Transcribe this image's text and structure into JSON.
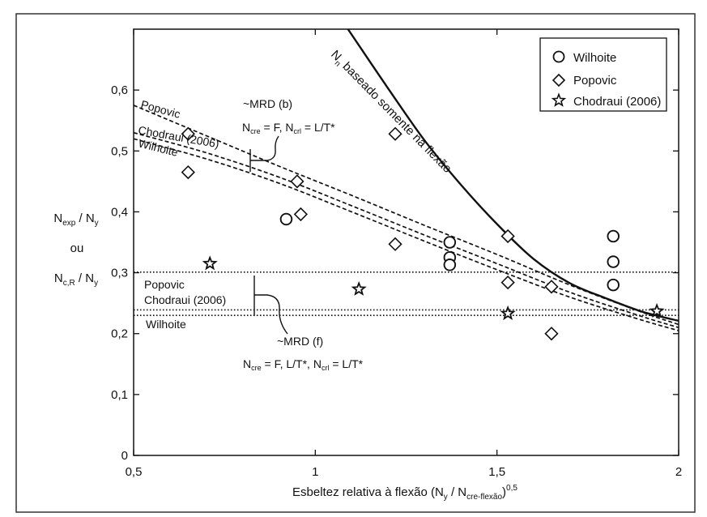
{
  "chart_data": {
    "type": "scatter",
    "xlim": [
      0.5,
      2.0
    ],
    "ylim": [
      0,
      0.7
    ],
    "x_ticks": [
      {
        "v": 0.5,
        "label": "0,5"
      },
      {
        "v": 1.0,
        "label": "1"
      },
      {
        "v": 1.5,
        "label": "1,5"
      },
      {
        "v": 2.0,
        "label": "2"
      }
    ],
    "y_ticks": [
      {
        "v": 0,
        "label": "0"
      },
      {
        "v": 0.1,
        "label": "0,1"
      },
      {
        "v": 0.2,
        "label": "0,2"
      },
      {
        "v": 0.3,
        "label": "0,3"
      },
      {
        "v": 0.4,
        "label": "0,4"
      },
      {
        "v": 0.5,
        "label": "0,5"
      },
      {
        "v": 0.6,
        "label": "0,6"
      }
    ],
    "xlabel": {
      "main": "Esbeltez relativa à flexão (N",
      "sub1": "y",
      "mid": " / N",
      "sub2": "cre-flexão",
      "end": ")",
      "sup": "0,5"
    },
    "ylabel": {
      "line1_a": "N",
      "line1_sub_a": "exp",
      "line1_b": " / N",
      "line1_sub_b": "y",
      "line2": "ou",
      "line3_a": "N",
      "line3_sub_a": "c,R",
      "line3_b": " / N",
      "line3_sub_b": "y"
    },
    "legend": {
      "position": "top-right",
      "entries": [
        {
          "marker": "circle",
          "name": "Wilhoite"
        },
        {
          "marker": "diamond",
          "name": "Popovic"
        },
        {
          "marker": "star",
          "name": "Chodraui (2006)"
        }
      ]
    },
    "series": [
      {
        "name": "Wilhoite",
        "marker": "circle",
        "points": [
          [
            0.92,
            0.388
          ],
          [
            1.37,
            0.35
          ],
          [
            1.37,
            0.325
          ],
          [
            1.37,
            0.313
          ],
          [
            1.82,
            0.36
          ],
          [
            1.82,
            0.318
          ],
          [
            1.82,
            0.28
          ]
        ]
      },
      {
        "name": "Popovic",
        "marker": "diamond",
        "points": [
          [
            0.65,
            0.528
          ],
          [
            0.65,
            0.465
          ],
          [
            0.95,
            0.45
          ],
          [
            0.96,
            0.396
          ],
          [
            1.22,
            0.528
          ],
          [
            1.22,
            0.347
          ],
          [
            1.53,
            0.36
          ],
          [
            1.53,
            0.284
          ],
          [
            1.65,
            0.277
          ],
          [
            1.65,
            0.2
          ]
        ]
      },
      {
        "name": "Chodraui (2006)",
        "marker": "star",
        "points": [
          [
            0.71,
            0.315
          ],
          [
            1.12,
            0.273
          ],
          [
            1.53,
            0.233
          ],
          [
            1.94,
            0.237
          ]
        ]
      }
    ],
    "curves": [
      {
        "name": "flexure",
        "style": "solid",
        "points": [
          [
            1.09,
            0.7
          ],
          [
            1.2,
            0.603
          ],
          [
            1.3,
            0.518
          ],
          [
            1.4,
            0.445
          ],
          [
            1.5,
            0.38
          ],
          [
            1.6,
            0.323
          ],
          [
            1.7,
            0.283
          ],
          [
            1.8,
            0.258
          ],
          [
            1.9,
            0.236
          ],
          [
            2.0,
            0.221
          ]
        ]
      },
      {
        "name": "mrd-b-popovic",
        "style": "dashed",
        "points": [
          [
            0.5,
            0.575
          ],
          [
            0.7,
            0.525
          ],
          [
            0.9,
            0.475
          ],
          [
            1.1,
            0.427
          ],
          [
            1.3,
            0.378
          ],
          [
            1.5,
            0.33
          ],
          [
            1.7,
            0.28
          ],
          [
            1.9,
            0.235
          ],
          [
            2.0,
            0.215
          ]
        ]
      },
      {
        "name": "mrd-b-chodraui",
        "style": "dashed",
        "points": [
          [
            0.5,
            0.53
          ],
          [
            0.7,
            0.497
          ],
          [
            0.9,
            0.457
          ],
          [
            1.1,
            0.41
          ],
          [
            1.3,
            0.362
          ],
          [
            1.5,
            0.315
          ],
          [
            1.7,
            0.268
          ],
          [
            1.9,
            0.228
          ],
          [
            2.0,
            0.21
          ]
        ]
      },
      {
        "name": "mrd-b-wilhoite",
        "style": "dashed",
        "points": [
          [
            0.5,
            0.52
          ],
          [
            0.7,
            0.487
          ],
          [
            0.9,
            0.447
          ],
          [
            1.1,
            0.4
          ],
          [
            1.3,
            0.352
          ],
          [
            1.5,
            0.305
          ],
          [
            1.7,
            0.26
          ],
          [
            1.9,
            0.222
          ],
          [
            2.0,
            0.205
          ]
        ]
      },
      {
        "name": "mrd-f-popovic",
        "style": "dotted",
        "points": [
          [
            0.5,
            0.301
          ],
          [
            2.0,
            0.301
          ]
        ]
      },
      {
        "name": "mrd-f-chodraui",
        "style": "dotted",
        "points": [
          [
            0.5,
            0.239
          ],
          [
            2.0,
            0.239
          ]
        ]
      },
      {
        "name": "mrd-f-wilhoite",
        "style": "dotted",
        "points": [
          [
            0.5,
            0.23
          ],
          [
            2.0,
            0.23
          ]
        ]
      }
    ],
    "annotations": {
      "flexure_curve_label_a": "N",
      "flexure_curve_label_sub": "n",
      "flexure_curve_label_b": " baseado somente na flexão",
      "popovic_b": "Popovic",
      "chodraui_b": "Chodraui (2006)",
      "wilhoite_b": "Wilhoite",
      "popovic_f": "Popovic",
      "chodraui_f": "Chodraui (2006)",
      "wilhoite_f": "Wilhoite",
      "mrd_b_title": "~MRD (b)",
      "mrd_b_n": "N",
      "mrd_b_n_sub": "cre",
      "mrd_b_eq1": " =  F, N",
      "mrd_b_n2_sub": "crl",
      "mrd_b_eq2": " = L/T*",
      "mrd_f_title": "~MRD (f)",
      "mrd_f_n": "N",
      "mrd_f_n_sub": "cre",
      "mrd_f_eq1": " =  F, L/T*,  N",
      "mrd_f_n2_sub": "crl",
      "mrd_f_eq2": " = L/T*"
    }
  }
}
